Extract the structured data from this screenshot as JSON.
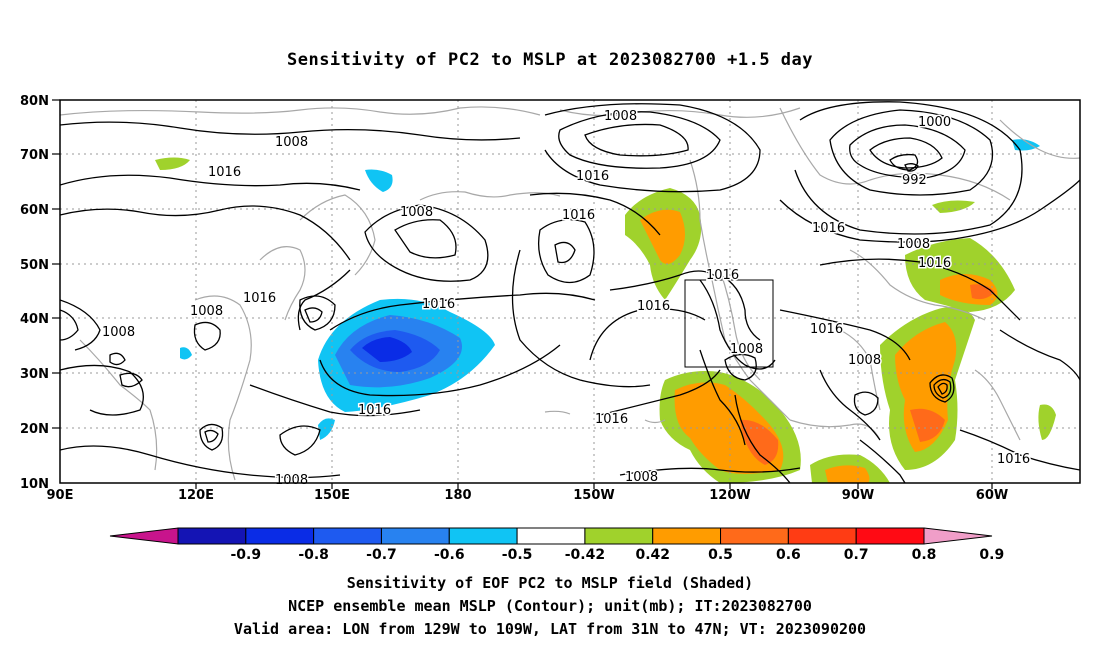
{
  "title": "Sensitivity of PC2 to MSLP at 2023082700 +1.5 day",
  "lat_labels": [
    "80N",
    "70N",
    "60N",
    "50N",
    "40N",
    "30N",
    "20N",
    "10N"
  ],
  "lon_labels": [
    "90E",
    "120E",
    "150E",
    "180",
    "150W",
    "120W",
    "90W",
    "60W"
  ],
  "contour_labels": [
    "1008",
    "1016",
    "1016",
    "1008",
    "1016",
    "1008",
    "1016",
    "1008",
    "1016",
    "1016",
    "1016",
    "1008",
    "1016",
    "1016",
    "1000",
    "992",
    "1016",
    "1008",
    "1016",
    "1016",
    "1008",
    "1008",
    "1008",
    "1016",
    "1008"
  ],
  "colorbar": {
    "labels": [
      "-0.9",
      "-0.8",
      "-0.7",
      "-0.6",
      "-0.5",
      "-0.42",
      "0.42",
      "0.5",
      "0.6",
      "0.7",
      "0.8",
      "0.9"
    ],
    "colors": [
      "#c8148c",
      "#1414b4",
      "#0a2ce6",
      "#1e5af0",
      "#2882f0",
      "#10c4f4",
      "#ffffff",
      "#a0d22c",
      "#ff9c00",
      "#ff6a1a",
      "#ff3c14",
      "#ff0a14",
      "#f09ec8"
    ]
  },
  "captions": [
    "Sensitivity of EOF PC2 to MSLP field (Shaded)",
    "NCEP ensemble mean MSLP (Contour); unit(mb); IT:2023082700",
    "Valid area: LON from 129W to 109W, LAT from 31N to 47N; VT: 2023090200"
  ]
}
